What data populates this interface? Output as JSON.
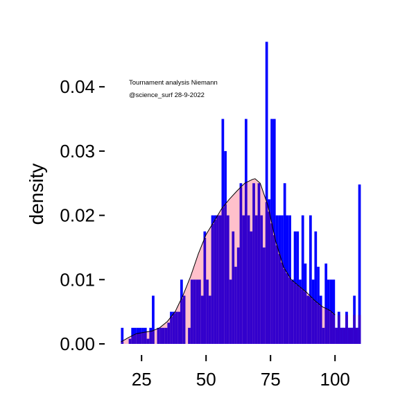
{
  "chart_data": {
    "type": "bar",
    "ylabel": "density",
    "xlabel": "",
    "annotations": [
      "Tournament analysis Niemann",
      "@science_surf 28-9-2022"
    ],
    "xlim": [
      15,
      101
    ],
    "ylim": [
      0,
      0.047
    ],
    "x_ticks": [
      25,
      50,
      75,
      100
    ],
    "x_tick_labels": [
      "25",
      "50",
      "75",
      "100"
    ],
    "y_ticks": [
      0,
      0.01,
      0.02,
      0.03,
      0.04
    ],
    "y_tick_labels": [
      "0.00",
      "0.01",
      "0.02",
      "0.03",
      "0.04"
    ],
    "grid": false,
    "colors": {
      "histogram": "#0000ff",
      "density_fill": "#ffc0cb",
      "overlap": "#3300cc",
      "density_line": "#000000"
    },
    "histogram": {
      "bin_start": 17,
      "bin_width": 1,
      "values": [
        0.0025,
        0,
        0,
        0.0008,
        0.0025,
        0.0025,
        0.0025,
        0.0025,
        0.0025,
        0.0025,
        0.0008,
        0.0025,
        0.0075,
        0,
        0.0025,
        0.0025,
        0.0025,
        0.0025,
        0.0033,
        0.005,
        0.005,
        0.005,
        0.005,
        0.01,
        0.0075,
        0,
        0.0025,
        0.01,
        0.01,
        0.01,
        0.01,
        0.0075,
        0.0175,
        0.01,
        0.0075,
        0.02,
        0.02,
        0.02,
        0.02,
        0.035,
        0.03,
        0.02,
        0.01,
        0.0175,
        0.012,
        0.015,
        0.025,
        0.02,
        0.035,
        0.02,
        0.0175,
        0.025,
        0.02,
        0.025,
        0.02,
        0.015,
        0.047,
        0.0225,
        0.035,
        0.035,
        0.02,
        0.02,
        0.02,
        0.025,
        0.02,
        0.02,
        0.01,
        0.0175,
        0.0175,
        0.01,
        0.02,
        0.0125,
        0.0075,
        0.02,
        0.01,
        0.0175,
        0.012,
        0.0075,
        0.0025,
        0.0125,
        0.01,
        0.01,
        0.01,
        0.0025,
        0.005,
        0.0025,
        0.0025,
        0.005,
        0.0025,
        0.0025,
        0.0075,
        0.0025,
        0.0248
      ]
    },
    "density": {
      "x": [
        17,
        20,
        23,
        26,
        29,
        32,
        35,
        38,
        41,
        44,
        47,
        50,
        53,
        56,
        59,
        62,
        65,
        68,
        69,
        71,
        74,
        77,
        80,
        83,
        86,
        89,
        92,
        95,
        98,
        100
      ],
      "y": [
        0.0003,
        0.001,
        0.0016,
        0.0018,
        0.002,
        0.0025,
        0.0035,
        0.005,
        0.0075,
        0.0105,
        0.014,
        0.017,
        0.019,
        0.021,
        0.0225,
        0.0238,
        0.025,
        0.0256,
        0.0257,
        0.025,
        0.0215,
        0.016,
        0.012,
        0.01,
        0.009,
        0.008,
        0.0068,
        0.0058,
        0.0052,
        0.0045
      ]
    }
  }
}
